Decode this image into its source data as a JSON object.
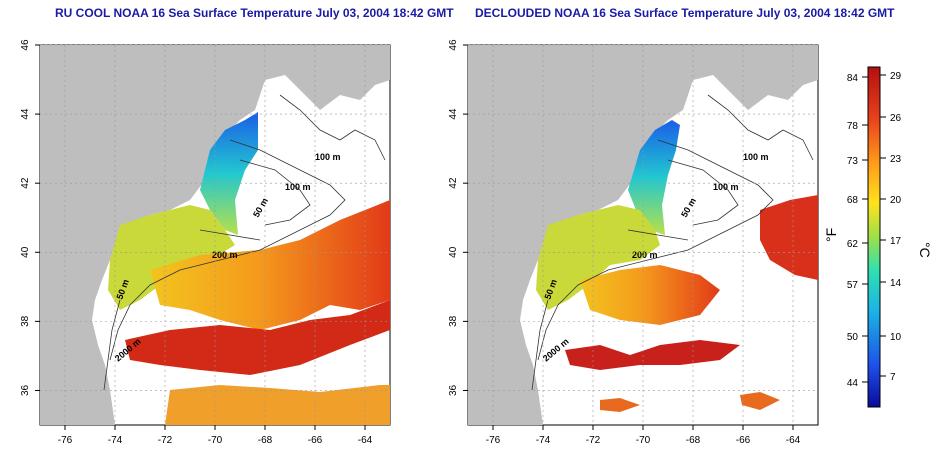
{
  "panels": [
    {
      "title": "RU COOL NOAA 16 Sea Surface Temperature July 03, 2004 18:42 GMT"
    },
    {
      "title": "DECLOUDED NOAA 16 Sea Surface Temperature July 03, 2004 18:42 GMT"
    }
  ],
  "axes": {
    "lon_ticks": [
      "-76",
      "-74",
      "-72",
      "-70",
      "-68",
      "-66",
      "-64"
    ],
    "lat_ticks": [
      "36",
      "38",
      "40",
      "42",
      "44",
      "46"
    ]
  },
  "contours": [
    "100 m",
    "100 m",
    "50 m",
    "200 m",
    "50 m",
    "2000 m"
  ],
  "colorbar": {
    "unit_f": "°F",
    "unit_c": "°C",
    "f_ticks": [
      "84",
      "78",
      "73",
      "68",
      "62",
      "57",
      "50",
      "44"
    ],
    "c_ticks": [
      "29",
      "26",
      "23",
      "20",
      "17",
      "14",
      "10",
      "7"
    ],
    "colors": [
      "#0a0a9a",
      "#1e4fe8",
      "#1ab3e6",
      "#2ee0b0",
      "#9ee04a",
      "#ffe21a",
      "#ff9a1a",
      "#e8401a",
      "#b40f12"
    ]
  }
}
